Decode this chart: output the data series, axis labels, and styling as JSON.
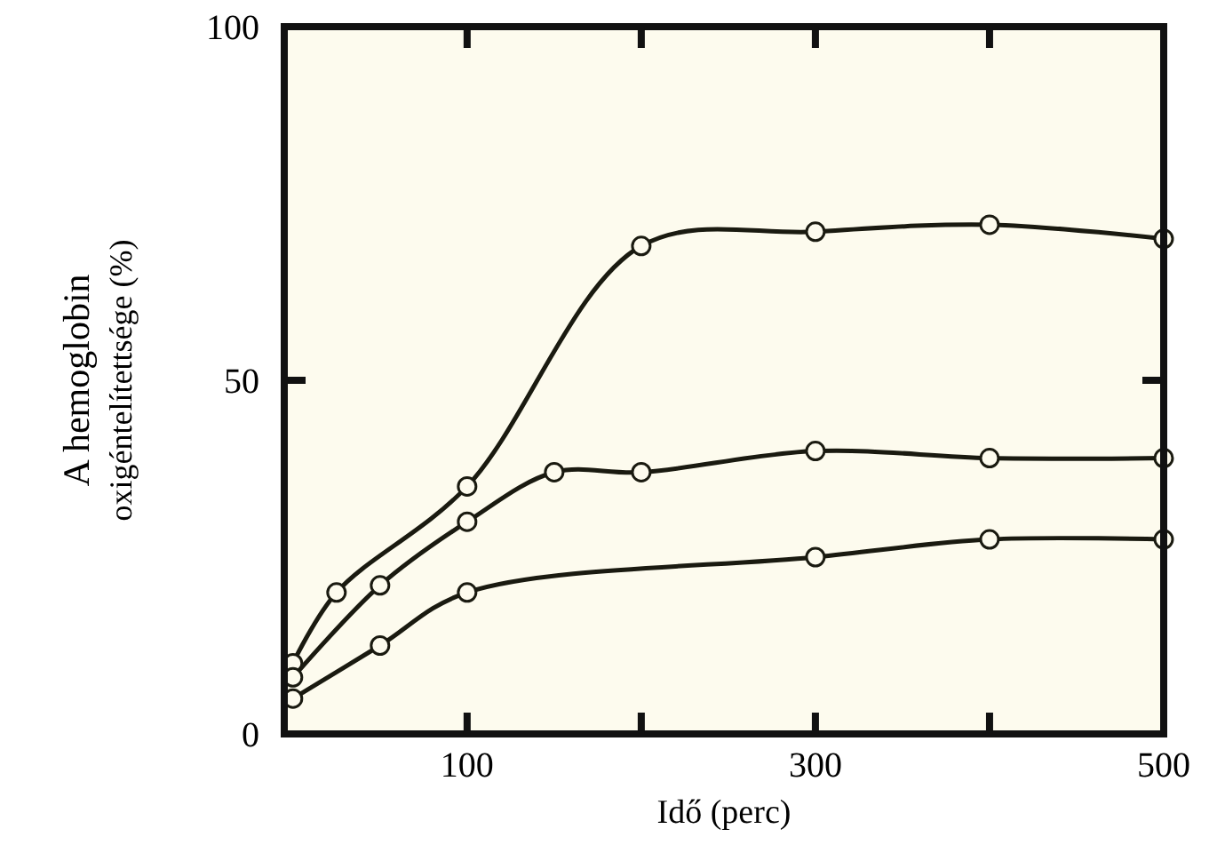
{
  "chart_data": {
    "type": "line",
    "xlabel": "Idő (perc)",
    "ylabel": "A hemoglobin\noxigéntelítettsége (%)",
    "xlim": [
      -5,
      500
    ],
    "ylim": [
      0,
      100
    ],
    "xticks": [
      100,
      {
        "value": 200,
        "label": null
      },
      300,
      {
        "value": 400,
        "label": null
      },
      500
    ],
    "yticks": [
      0,
      50,
      100
    ],
    "marker": "circle",
    "line_style": "solid",
    "grid": false,
    "series": [
      {
        "color": "#1a1a10",
        "x": [
          0,
          25,
          100,
          200,
          300,
          400,
          500
        ],
        "values": [
          10,
          20,
          35,
          69,
          71,
          72,
          70
        ]
      },
      {
        "color": "#1a1a10",
        "x": [
          0,
          50,
          100,
          150,
          200,
          300,
          400,
          500
        ],
        "values": [
          8,
          21,
          30,
          37,
          37,
          40,
          39,
          39
        ]
      },
      {
        "color": "#1a1a10",
        "x": [
          0,
          50,
          100,
          300,
          400,
          500
        ],
        "values": [
          5,
          12.5,
          20,
          25,
          27.5,
          27.5
        ]
      }
    ]
  }
}
